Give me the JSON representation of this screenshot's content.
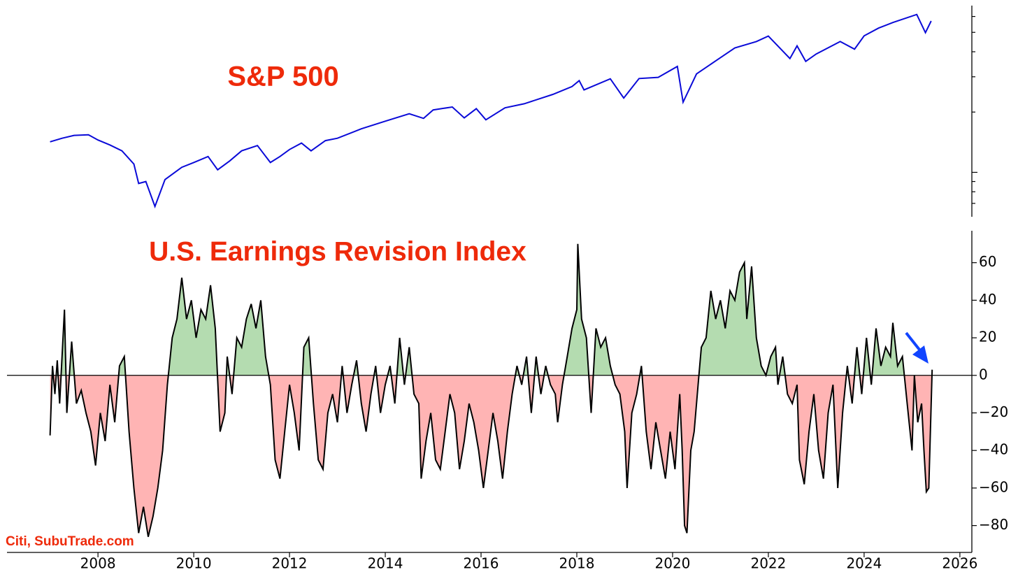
{
  "chart_data": [
    {
      "type": "line",
      "title": "S&P 500",
      "color": "#0a0ad8",
      "log_scale": true,
      "xlim": [
        2006.1,
        2026.25
      ],
      "ylim": [
        600,
        6800
      ],
      "yticks": [
        700,
        800,
        900,
        1000,
        2000,
        3000,
        4000,
        5000,
        6000
      ],
      "x": [
        2007.0,
        2007.25,
        2007.5,
        2007.8,
        2008.0,
        2008.25,
        2008.5,
        2008.75,
        2008.85,
        2009.0,
        2009.19,
        2009.4,
        2009.75,
        2010.0,
        2010.3,
        2010.5,
        2010.75,
        2011.0,
        2011.33,
        2011.6,
        2011.8,
        2012.0,
        2012.25,
        2012.45,
        2012.75,
        2013.0,
        2013.5,
        2014.0,
        2014.5,
        2014.8,
        2015.0,
        2015.4,
        2015.65,
        2015.9,
        2016.1,
        2016.5,
        2016.9,
        2017.5,
        2017.9,
        2018.05,
        2018.15,
        2018.7,
        2018.98,
        2019.3,
        2019.7,
        2020.1,
        2020.22,
        2020.5,
        2020.9,
        2021.3,
        2021.75,
        2022.0,
        2022.45,
        2022.6,
        2022.78,
        2023.0,
        2023.5,
        2023.8,
        2024.0,
        2024.3,
        2024.6,
        2025.1,
        2025.28,
        2025.4
      ],
      "values": [
        1420,
        1480,
        1530,
        1540,
        1450,
        1370,
        1280,
        1100,
        880,
        900,
        676,
        920,
        1060,
        1120,
        1200,
        1030,
        1140,
        1280,
        1360,
        1120,
        1200,
        1300,
        1400,
        1280,
        1440,
        1480,
        1650,
        1800,
        1960,
        1860,
        2050,
        2120,
        1870,
        2080,
        1830,
        2100,
        2200,
        2450,
        2680,
        2870,
        2580,
        2930,
        2350,
        2940,
        2980,
        3380,
        2240,
        3100,
        3600,
        4180,
        4500,
        4790,
        3700,
        4280,
        3580,
        3900,
        4500,
        4120,
        4800,
        5250,
        5600,
        6140,
        4980,
        5700
      ]
    },
    {
      "type": "area",
      "title": "U.S. Earnings Revision Index",
      "color": "#000000",
      "fill_colors": {
        "above": "#b4dcb0",
        "below": "#ffb4b4"
      },
      "xlim": [
        2006.1,
        2026.25
      ],
      "ylim": [
        -94.3,
        77
      ],
      "xticks": [
        2008,
        2010,
        2012,
        2014,
        2016,
        2018,
        2020,
        2022,
        2024,
        2026
      ],
      "yticks": [
        {
          "value": -80,
          "label": "−80"
        },
        {
          "value": -60,
          "label": "−60"
        },
        {
          "value": -40,
          "label": "−40"
        },
        {
          "value": -20,
          "label": "−20"
        },
        0,
        20,
        40,
        60
      ],
      "x": [
        2007.0,
        2007.05,
        2007.1,
        2007.15,
        2007.2,
        2007.3,
        2007.35,
        2007.45,
        2007.55,
        2007.65,
        2007.75,
        2007.85,
        2007.95,
        2008.05,
        2008.15,
        2008.25,
        2008.35,
        2008.45,
        2008.55,
        2008.65,
        2008.75,
        2008.85,
        2008.95,
        2009.05,
        2009.15,
        2009.25,
        2009.35,
        2009.45,
        2009.55,
        2009.65,
        2009.75,
        2009.85,
        2009.95,
        2010.05,
        2010.15,
        2010.25,
        2010.35,
        2010.45,
        2010.55,
        2010.65,
        2010.7,
        2010.8,
        2010.9,
        2011.0,
        2011.1,
        2011.2,
        2011.3,
        2011.4,
        2011.5,
        2011.6,
        2011.7,
        2011.8,
        2011.9,
        2012.0,
        2012.1,
        2012.2,
        2012.3,
        2012.4,
        2012.5,
        2012.6,
        2012.7,
        2012.8,
        2012.9,
        2013.0,
        2013.1,
        2013.2,
        2013.3,
        2013.4,
        2013.5,
        2013.6,
        2013.7,
        2013.8,
        2013.9,
        2014.0,
        2014.1,
        2014.2,
        2014.3,
        2014.4,
        2014.5,
        2014.6,
        2014.7,
        2014.75,
        2014.85,
        2014.95,
        2015.05,
        2015.15,
        2015.25,
        2015.35,
        2015.45,
        2015.55,
        2015.65,
        2015.75,
        2015.85,
        2015.95,
        2016.05,
        2016.15,
        2016.25,
        2016.35,
        2016.45,
        2016.55,
        2016.65,
        2016.75,
        2016.85,
        2016.95,
        2017.05,
        2017.15,
        2017.25,
        2017.35,
        2017.45,
        2017.55,
        2017.6,
        2017.7,
        2017.8,
        2017.9,
        2018.0,
        2018.02,
        2018.1,
        2018.2,
        2018.3,
        2018.4,
        2018.5,
        2018.6,
        2018.7,
        2018.8,
        2018.9,
        2019.0,
        2019.05,
        2019.15,
        2019.25,
        2019.35,
        2019.45,
        2019.55,
        2019.65,
        2019.75,
        2019.85,
        2019.95,
        2020.05,
        2020.15,
        2020.2,
        2020.25,
        2020.3,
        2020.38,
        2020.45,
        2020.55,
        2020.6,
        2020.7,
        2020.8,
        2020.9,
        2021.0,
        2021.1,
        2021.2,
        2021.3,
        2021.4,
        2021.5,
        2021.55,
        2021.65,
        2021.75,
        2021.85,
        2021.95,
        2022.05,
        2022.15,
        2022.2,
        2022.3,
        2022.4,
        2022.5,
        2022.6,
        2022.65,
        2022.75,
        2022.85,
        2022.95,
        2023.05,
        2023.15,
        2023.25,
        2023.35,
        2023.45,
        2023.55,
        2023.65,
        2023.75,
        2023.85,
        2023.95,
        2024.05,
        2024.15,
        2024.25,
        2024.35,
        2024.45,
        2024.55,
        2024.6,
        2024.7,
        2024.8,
        2024.9,
        2025.0,
        2025.05,
        2025.12,
        2025.2,
        2025.25,
        2025.3,
        2025.35,
        2025.42
      ],
      "values": [
        -32,
        5,
        -10,
        8,
        -15,
        35,
        -20,
        18,
        -15,
        -8,
        -20,
        -30,
        -48,
        -20,
        -35,
        -5,
        -25,
        5,
        10,
        -30,
        -60,
        -84,
        -70,
        -86,
        -75,
        -60,
        -40,
        -5,
        20,
        30,
        52,
        30,
        40,
        20,
        35,
        30,
        48,
        25,
        -30,
        -20,
        10,
        -10,
        20,
        15,
        30,
        38,
        25,
        40,
        10,
        -5,
        -45,
        -55,
        -30,
        -5,
        -20,
        -40,
        15,
        20,
        -15,
        -45,
        -50,
        -20,
        -10,
        -25,
        5,
        -20,
        -5,
        8,
        -15,
        -30,
        -10,
        5,
        -20,
        -5,
        5,
        -15,
        20,
        -5,
        15,
        -10,
        -15,
        -55,
        -35,
        -20,
        -45,
        -50,
        -30,
        -10,
        -20,
        -50,
        -35,
        -15,
        -25,
        -40,
        -60,
        -40,
        -20,
        -35,
        -55,
        -30,
        -10,
        5,
        -5,
        10,
        -20,
        10,
        -10,
        5,
        -5,
        -10,
        -25,
        -5,
        10,
        25,
        35,
        70,
        30,
        20,
        -20,
        25,
        15,
        20,
        5,
        -5,
        -10,
        -30,
        -60,
        -20,
        -10,
        5,
        -30,
        -50,
        -25,
        -40,
        -55,
        -30,
        -50,
        -10,
        -40,
        -80,
        -84,
        -40,
        -30,
        0,
        15,
        20,
        45,
        30,
        40,
        25,
        45,
        40,
        55,
        60,
        30,
        58,
        20,
        5,
        0,
        10,
        15,
        -5,
        10,
        -10,
        -15,
        -5,
        -45,
        -58,
        -30,
        -10,
        -40,
        -55,
        -20,
        -5,
        -60,
        -20,
        5,
        -15,
        15,
        -10,
        20,
        -5,
        25,
        5,
        15,
        10,
        28,
        5,
        10,
        -15,
        -40,
        0,
        -25,
        -15,
        -40,
        -62,
        -60,
        3
      ]
    }
  ],
  "source": "Citi, SubuTrade.com"
}
